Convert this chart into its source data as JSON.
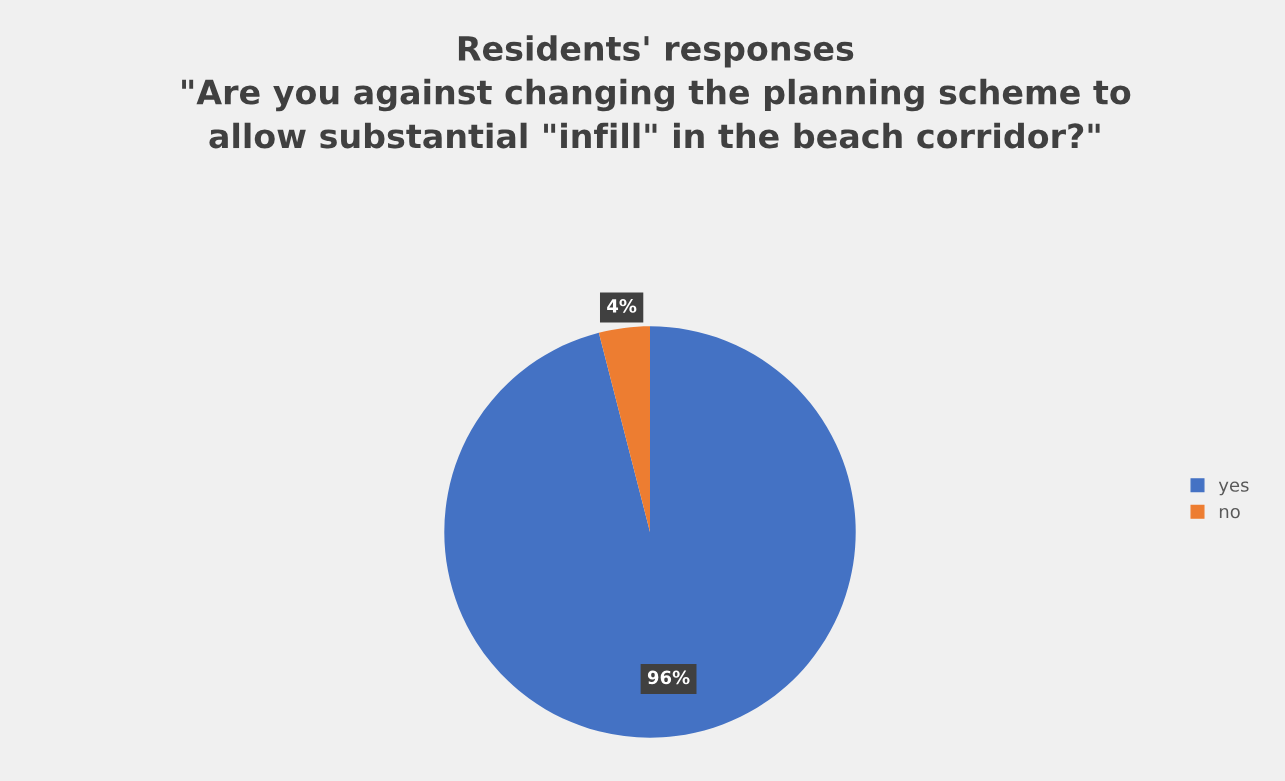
{
  "chart_data": {
    "type": "pie",
    "title": "Residents' responses\n\"Are you against changing the planning scheme to\nallow substantial \"infill\" in the beach corridor?\"",
    "categories": [
      "yes",
      "no"
    ],
    "values": [
      96,
      4
    ],
    "colors": [
      "#4472c4",
      "#ed7d31"
    ],
    "value_labels": [
      "96%",
      "4%"
    ],
    "legend": "right"
  }
}
